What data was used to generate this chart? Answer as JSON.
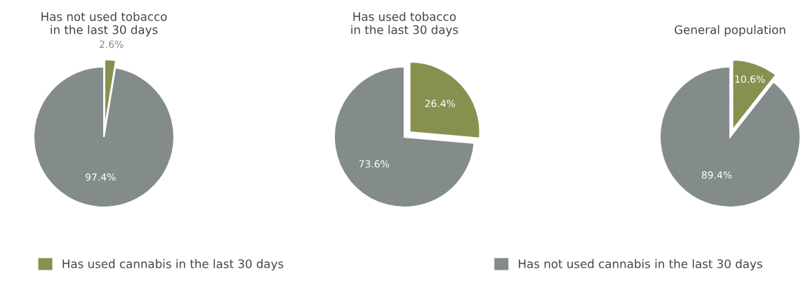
{
  "chart_data": [
    {
      "type": "pie",
      "title": "Has not used tobacco\nin the last 30 days",
      "categories": [
        "Has used cannabis in the last 30 days",
        "Has not used cannabis in the last 30 days"
      ],
      "values": [
        2.6,
        97.4
      ],
      "colors": [
        "#87914f",
        "#838b8b"
      ],
      "value_labels": [
        "2.6%",
        "97.4%"
      ],
      "legend": "bottom"
    },
    {
      "type": "pie",
      "title": "Has used tobacco\nin the last 30 days",
      "categories": [
        null,
        null
      ],
      "values": [
        26.4,
        73.6
      ],
      "colors": [
        "#87914f",
        "#838b8b"
      ],
      "value_labels": [
        "26.4%",
        "73.6%"
      ]
    },
    {
      "type": "pie",
      "title": "General population",
      "categories": [
        null,
        null
      ],
      "values": [
        10.6,
        89.4
      ],
      "colors": [
        "#87914f",
        "#838b8b"
      ],
      "value_labels": [
        "10.6%",
        "89.4%"
      ]
    }
  ]
}
